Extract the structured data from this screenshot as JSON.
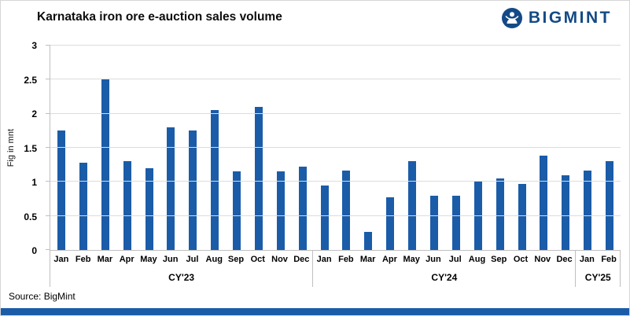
{
  "header": {
    "title": "Karnataka iron ore e-auction sales volume",
    "brand": "BIGMINT"
  },
  "chart_data": {
    "type": "bar",
    "title": "Karnataka iron ore e-auction sales volume",
    "ylabel": "Fig in mnt",
    "ylim": [
      0,
      3
    ],
    "ytick_values": [
      0,
      0.5,
      1,
      1.5,
      2,
      2.5,
      3
    ],
    "ytick_labels": [
      "0",
      "0.5",
      "1",
      "1.5",
      "2",
      "2.5",
      "3"
    ],
    "grid": true,
    "legend": "none",
    "bar_color": "#1b5ca8",
    "groups": [
      {
        "label": "CY'23",
        "categories": [
          "Jan",
          "Feb",
          "Mar",
          "Apr",
          "May",
          "Jun",
          "Jul",
          "Aug",
          "Sep",
          "Oct",
          "Nov",
          "Dec"
        ],
        "values": [
          1.75,
          1.28,
          2.5,
          1.3,
          1.2,
          1.8,
          1.75,
          2.05,
          1.15,
          2.1,
          1.15,
          1.22
        ]
      },
      {
        "label": "CY'24",
        "categories": [
          "Jan",
          "Feb",
          "Mar",
          "Apr",
          "May",
          "Jun",
          "Jul",
          "Aug",
          "Sep",
          "Oct",
          "Nov",
          "Dec"
        ],
        "values": [
          0.95,
          1.17,
          0.27,
          0.77,
          1.3,
          0.8,
          0.8,
          1.0,
          1.05,
          0.97,
          1.38,
          1.1
        ]
      },
      {
        "label": "CY'25",
        "categories": [
          "Jan",
          "Feb"
        ],
        "values": [
          1.17,
          1.3
        ]
      }
    ]
  },
  "footer": {
    "source_label": "Source: BigMint"
  },
  "colors": {
    "accent_blue": "#1b5ca8",
    "brand_navy": "#134a86",
    "gridline_gray": "#dcdcdc"
  }
}
